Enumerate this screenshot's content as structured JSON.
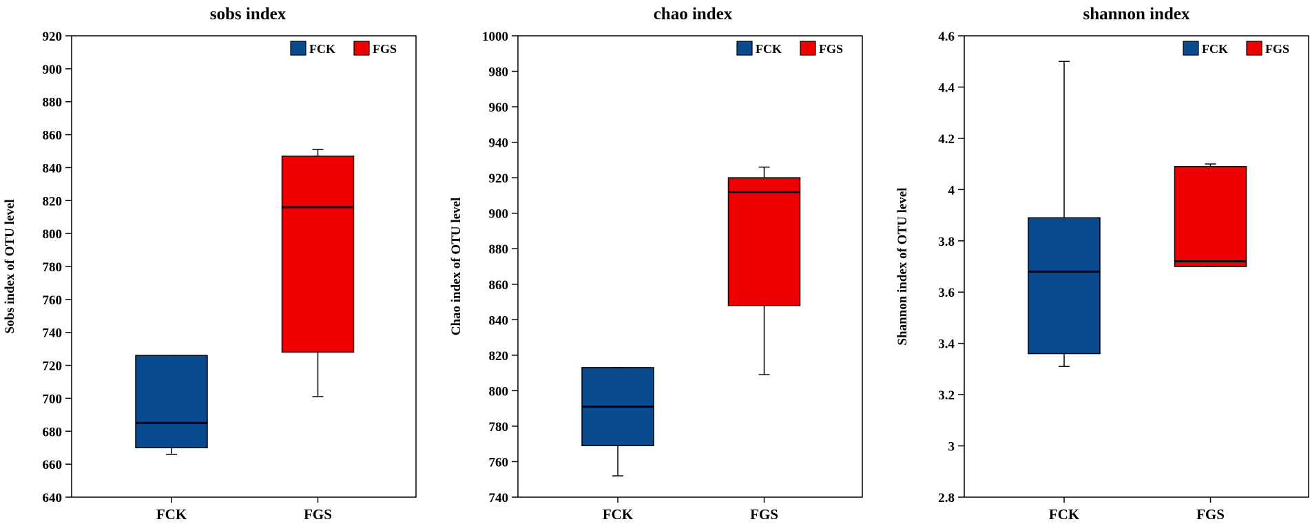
{
  "colors": {
    "FCK": "#0a4a8f",
    "FGS": "#ee0000"
  },
  "chart_data": [
    {
      "type": "boxplot",
      "title": "sobs index",
      "ylabel": "Sobs index of OTU level",
      "xlabel": "",
      "categories": [
        "FCK",
        "FGS"
      ],
      "ylim": [
        640,
        920
      ],
      "yticks": [
        640,
        660,
        680,
        700,
        720,
        740,
        760,
        780,
        800,
        820,
        840,
        860,
        880,
        900,
        920
      ],
      "ytick_labels": [
        "640",
        "660",
        "680",
        "700",
        "720",
        "740",
        "760",
        "780",
        "800",
        "820",
        "840",
        "860",
        "880",
        "900",
        "920"
      ],
      "legend": [
        "FCK",
        "FGS"
      ],
      "legend_position": "top-right",
      "boxes": [
        {
          "name": "FCK",
          "min": 666,
          "q1": 670,
          "median": 685,
          "q3": 726,
          "max": 726
        },
        {
          "name": "FGS",
          "min": 701,
          "q1": 728,
          "median": 816,
          "q3": 847,
          "max": 851
        }
      ]
    },
    {
      "type": "boxplot",
      "title": "chao index",
      "ylabel": "Chao index of OTU level",
      "xlabel": "",
      "categories": [
        "FCK",
        "FGS"
      ],
      "ylim": [
        740,
        1000
      ],
      "yticks": [
        740,
        760,
        780,
        800,
        820,
        840,
        860,
        880,
        900,
        920,
        940,
        960,
        980,
        1000
      ],
      "ytick_labels": [
        "740",
        "760",
        "780",
        "800",
        "820",
        "840",
        "860",
        "880",
        "900",
        "920",
        "940",
        "960",
        "980",
        "1000"
      ],
      "legend": [
        "FCK",
        "FGS"
      ],
      "legend_position": "top-right",
      "boxes": [
        {
          "name": "FCK",
          "min": 752,
          "q1": 769,
          "median": 791,
          "q3": 813,
          "max": 813
        },
        {
          "name": "FGS",
          "min": 809,
          "q1": 848,
          "median": 912,
          "q3": 920,
          "max": 926
        }
      ]
    },
    {
      "type": "boxplot",
      "title": "shannon index",
      "ylabel": "Shannon index of OTU level",
      "xlabel": "",
      "categories": [
        "FCK",
        "FGS"
      ],
      "ylim": [
        2.8,
        4.6
      ],
      "yticks": [
        2.8,
        3.0,
        3.2,
        3.4,
        3.6,
        3.8,
        4.0,
        4.2,
        4.4,
        4.6
      ],
      "ytick_labels": [
        "2.8",
        "3",
        "3.2",
        "3.4",
        "3.6",
        "3.8",
        "4",
        "4.2",
        "4.4",
        "4.6"
      ],
      "legend": [
        "FCK",
        "FGS"
      ],
      "legend_position": "top-right",
      "boxes": [
        {
          "name": "FCK",
          "min": 3.31,
          "q1": 3.36,
          "median": 3.68,
          "q3": 3.89,
          "max": 4.5
        },
        {
          "name": "FGS",
          "min": 3.7,
          "q1": 3.7,
          "median": 3.72,
          "q3": 4.09,
          "max": 4.1
        }
      ]
    }
  ]
}
